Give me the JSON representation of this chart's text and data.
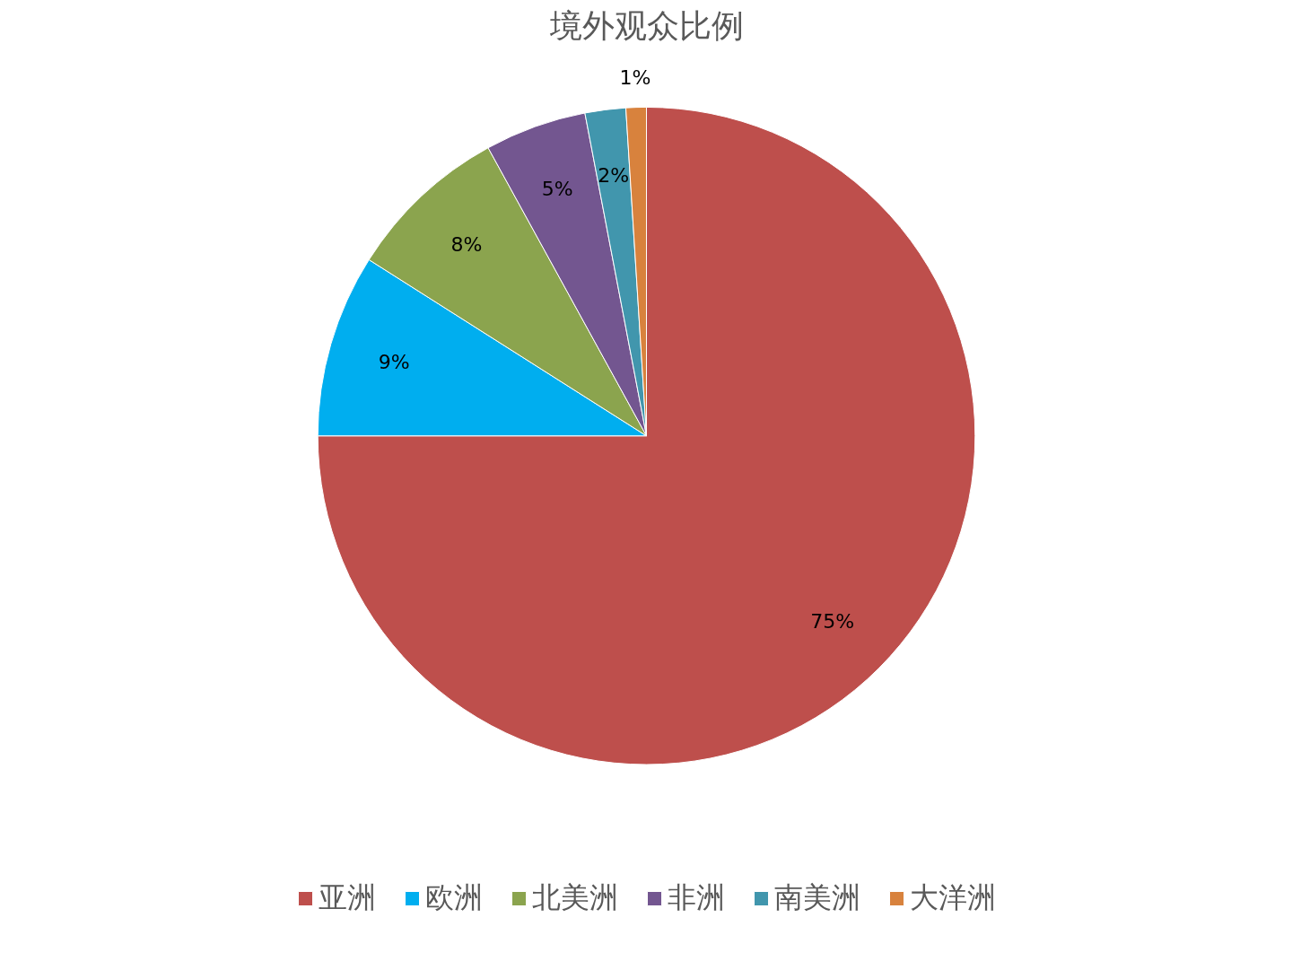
{
  "chart_data": {
    "type": "pie",
    "title": "境外观众比例",
    "categories": [
      "亚洲",
      "欧洲",
      "北美洲",
      "非洲",
      "南美洲",
      "大洋洲"
    ],
    "values": [
      75,
      9,
      8,
      5,
      2,
      1
    ],
    "value_labels": [
      "75%",
      "9%",
      "8%",
      "5%",
      "2%",
      "1%"
    ],
    "colors": [
      "#be4f4c",
      "#00aeef",
      "#8ba44e",
      "#735690",
      "#4196ad",
      "#d8823d"
    ],
    "legend": "bottom"
  }
}
